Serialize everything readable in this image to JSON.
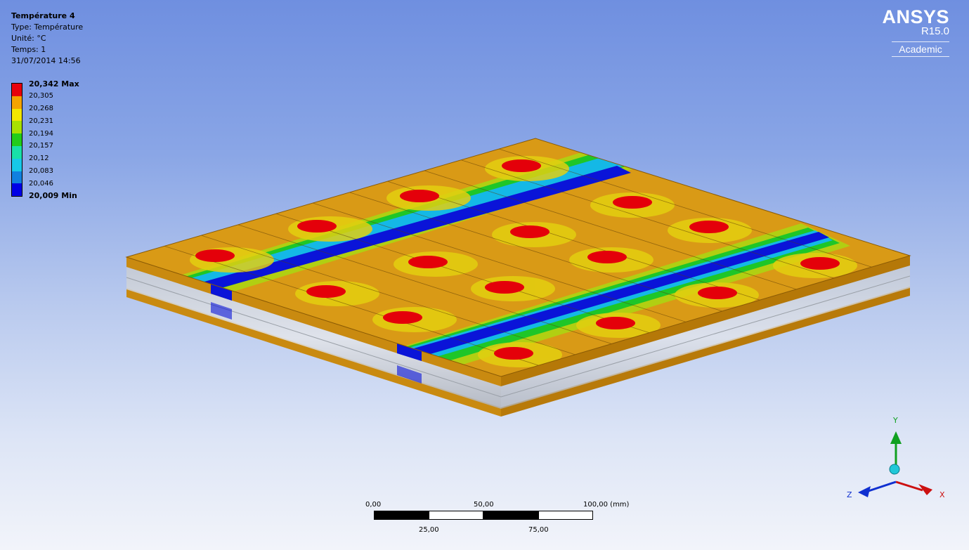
{
  "result": {
    "title": "Température 4",
    "type_line": "Type: Température",
    "unit_line": "Unité: °C",
    "time_line": "Temps: 1",
    "date_line": "31/07/2014 14:56"
  },
  "legend": {
    "max_label": "20,342 Max",
    "min_label": "20,009 Min",
    "ticks": [
      "20,305",
      "20,268",
      "20,231",
      "20,194",
      "20,157",
      "20,12",
      "20,083",
      "20,046"
    ],
    "colors": [
      "#e8000b",
      "#f5a300",
      "#f2e600",
      "#a8e000",
      "#22cc1a",
      "#18e0a8",
      "#16c8e8",
      "#1080e0",
      "#0000e6"
    ]
  },
  "logo": {
    "brand": "ANSYS",
    "version": "R15.0",
    "edition": "Academic"
  },
  "scale_bar": {
    "top_labels": [
      "0,00",
      "50,00",
      "100,00 (mm)"
    ],
    "bottom_labels": [
      "25,00",
      "75,00"
    ]
  },
  "triad": {
    "x_label": "X",
    "y_label": "Y",
    "z_label": "Z",
    "x_color": "#cc1010",
    "y_color": "#10a020",
    "z_color": "#1030d0"
  },
  "model": {
    "plate_color": "#d99a16",
    "hot_color": "#e4000a",
    "cold_color": "#0a14d8"
  }
}
